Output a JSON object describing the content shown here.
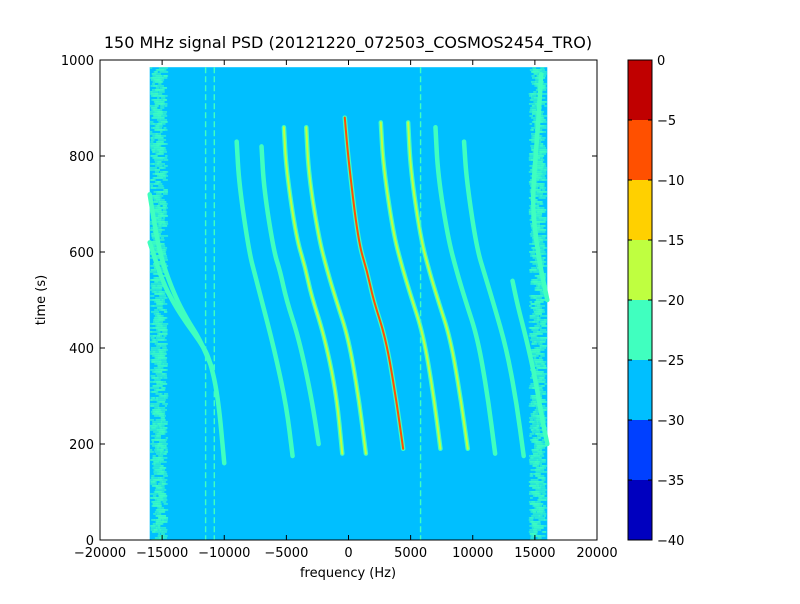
{
  "chart_data": {
    "type": "heatmap",
    "title": "150 MHz signal PSD (20121220_072503_COSMOS2454_TRO)",
    "xlabel": "frequency (Hz)",
    "ylabel": "time (s)",
    "xlim": [
      -20000,
      20000
    ],
    "ylim": [
      0,
      1000
    ],
    "xticks": [
      -20000,
      -15000,
      -10000,
      -5000,
      0,
      5000,
      10000,
      15000,
      20000
    ],
    "xtick_labels": [
      "−20000",
      "−15000",
      "−10000",
      "−5000",
      "0",
      "5000",
      "10000",
      "15000",
      "20000"
    ],
    "yticks": [
      0,
      200,
      400,
      600,
      800,
      1000
    ],
    "ytick_labels": [
      "0",
      "200",
      "400",
      "600",
      "800",
      "1000"
    ],
    "data_extent": {
      "freq": [
        -16000,
        16000
      ],
      "time": [
        0,
        985
      ]
    },
    "background_level": -27.5,
    "colorbar": {
      "min": -40,
      "max": 0,
      "ticks": [
        0,
        -5,
        -10,
        -15,
        -20,
        -25,
        -30,
        -35,
        -40
      ],
      "tick_labels": [
        "0",
        "−5",
        "−10",
        "−15",
        "−20",
        "−25",
        "−30",
        "−35",
        "−40"
      ],
      "levels": [
        {
          "from": -40,
          "to": -35,
          "color": "#0000bf"
        },
        {
          "from": -35,
          "to": -30,
          "color": "#0040ff"
        },
        {
          "from": -30,
          "to": -25,
          "color": "#00bfff"
        },
        {
          "from": -25,
          "to": -20,
          "color": "#40ffbf"
        },
        {
          "from": -20,
          "to": -15,
          "color": "#bfff40"
        },
        {
          "from": -15,
          "to": -10,
          "color": "#ffd000"
        },
        {
          "from": -10,
          "to": -5,
          "color": "#ff5000"
        },
        {
          "from": -5,
          "to": 0,
          "color": "#c00000"
        }
      ]
    },
    "noise_bands": [
      {
        "from": -16000,
        "to": -14500,
        "level": -24
      },
      {
        "from": 14500,
        "to": 16000,
        "level": -24
      }
    ],
    "spur_lines": [
      {
        "freq": -11500,
        "time": [
          0,
          985
        ],
        "level": -23
      },
      {
        "freq": -10800,
        "time": [
          0,
          985
        ],
        "level": -23
      },
      {
        "freq": 5800,
        "time": [
          0,
          985
        ],
        "level": -23
      }
    ],
    "series": [
      {
        "values": [
          [
            -16000,
            620
          ],
          [
            -15000,
            540
          ],
          [
            -14000,
            490
          ],
          [
            -13000,
            450
          ],
          [
            -12000,
            415
          ],
          [
            -11200,
            380
          ],
          [
            -10500,
            300
          ],
          [
            -10000,
            160
          ]
        ],
        "level": -22
      },
      {
        "values": [
          [
            -16000,
            720
          ],
          [
            -15500,
            640
          ],
          [
            -15000,
            580
          ],
          [
            -14000,
            510
          ],
          [
            -13000,
            460
          ],
          [
            -12000,
            420
          ],
          [
            -11000,
            360
          ]
        ],
        "level": -21
      },
      {
        "values": [
          [
            -9000,
            830
          ],
          [
            -8800,
            740
          ],
          [
            -8000,
            600
          ],
          [
            -7500,
            550
          ],
          [
            -7000,
            500
          ],
          [
            -6000,
            400
          ],
          [
            -5000,
            280
          ],
          [
            -4500,
            175
          ]
        ],
        "level": -21
      },
      {
        "values": [
          [
            -7000,
            820
          ],
          [
            -6800,
            730
          ],
          [
            -6000,
            600
          ],
          [
            -5500,
            560
          ],
          [
            -5000,
            500
          ],
          [
            -4000,
            420
          ],
          [
            -3000,
            300
          ],
          [
            -2400,
            200
          ]
        ],
        "level": -21
      },
      {
        "values": [
          [
            -5200,
            860
          ],
          [
            -5000,
            770
          ],
          [
            -4200,
            630
          ],
          [
            -3500,
            570
          ],
          [
            -3000,
            510
          ],
          [
            -2000,
            430
          ],
          [
            -1000,
            310
          ],
          [
            -500,
            180
          ]
        ],
        "level": -18
      },
      {
        "values": [
          [
            -3400,
            860
          ],
          [
            -3200,
            760
          ],
          [
            -2400,
            630
          ],
          [
            -1700,
            560
          ],
          [
            -1000,
            500
          ],
          [
            0,
            420
          ],
          [
            800,
            300
          ],
          [
            1400,
            180
          ]
        ],
        "level": -17
      },
      {
        "values": [
          [
            -300,
            880
          ],
          [
            0,
            790
          ],
          [
            800,
            620
          ],
          [
            1500,
            560
          ],
          [
            2000,
            500
          ],
          [
            3000,
            420
          ],
          [
            3800,
            300
          ],
          [
            4400,
            190
          ]
        ],
        "level": -7
      },
      {
        "values": [
          [
            2600,
            870
          ],
          [
            2800,
            780
          ],
          [
            3600,
            640
          ],
          [
            4300,
            570
          ],
          [
            5000,
            510
          ],
          [
            6000,
            430
          ],
          [
            6800,
            310
          ],
          [
            7400,
            190
          ]
        ],
        "level": -17
      },
      {
        "values": [
          [
            4800,
            870
          ],
          [
            5000,
            770
          ],
          [
            5800,
            630
          ],
          [
            6500,
            560
          ],
          [
            7200,
            500
          ],
          [
            8200,
            420
          ],
          [
            9000,
            300
          ],
          [
            9600,
            190
          ]
        ],
        "level": -19
      },
      {
        "values": [
          [
            7000,
            860
          ],
          [
            7200,
            760
          ],
          [
            8000,
            630
          ],
          [
            8700,
            560
          ],
          [
            9400,
            500
          ],
          [
            10400,
            420
          ],
          [
            11200,
            300
          ],
          [
            11800,
            180
          ]
        ],
        "level": -20
      },
      {
        "values": [
          [
            9300,
            830
          ],
          [
            9500,
            750
          ],
          [
            10300,
            610
          ],
          [
            11000,
            550
          ],
          [
            11700,
            490
          ],
          [
            12700,
            400
          ],
          [
            13500,
            290
          ],
          [
            14100,
            175
          ]
        ],
        "level": -21
      },
      {
        "values": [
          [
            15500,
            970
          ],
          [
            15300,
            880
          ],
          [
            15000,
            780
          ],
          [
            14800,
            700
          ],
          [
            15200,
            600
          ],
          [
            16000,
            500
          ]
        ],
        "level": -22
      },
      {
        "values": [
          [
            13200,
            540
          ],
          [
            13600,
            490
          ],
          [
            14300,
            420
          ],
          [
            15000,
            340
          ],
          [
            15600,
            250
          ],
          [
            16000,
            200
          ]
        ],
        "level": -23
      }
    ]
  }
}
